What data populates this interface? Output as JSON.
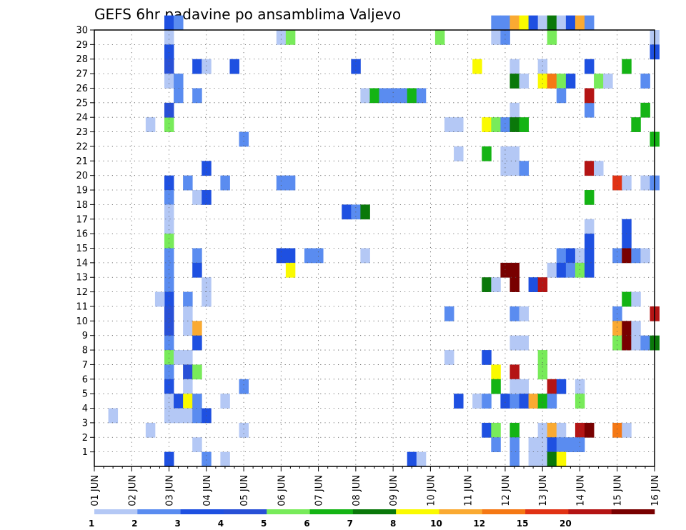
{
  "chart_data": {
    "type": "heatmap",
    "title": "GEFS 6hr padavine po ansamblima Valjevo",
    "xlabel": "",
    "ylabel": "",
    "x_ticks": [
      "01 JUN",
      "02 JUN",
      "03 JUN",
      "04 JUN",
      "05 JUN",
      "06 JUN",
      "07 JUN",
      "08 JUN",
      "09 JUN",
      "10 JUN",
      "11 JUN",
      "12 JUN",
      "13 JUN",
      "14 JUN",
      "15 JUN",
      "16 JUN"
    ],
    "y_ticks": [
      1,
      2,
      3,
      4,
      5,
      6,
      7,
      8,
      9,
      10,
      11,
      12,
      13,
      14,
      15,
      16,
      17,
      18,
      19,
      20,
      21,
      22,
      23,
      24,
      25,
      26,
      27,
      28,
      29,
      30
    ],
    "ylim": [
      0,
      30
    ],
    "time_step_hours": 6,
    "grid": "dotted",
    "legend_position": "bottom",
    "legend": {
      "labels": [
        "1",
        "2",
        "3",
        "4",
        "5",
        "6",
        "7",
        "8",
        "10",
        "12",
        "15",
        "20"
      ],
      "colors": [
        "#b4c8f5",
        "#5a8cf0",
        "#1e50e1",
        "#2850d7",
        "#78eb5a",
        "#14b414",
        "#0a780a",
        "#fafa00",
        "#faaa32",
        "#f57814",
        "#e13214",
        "#b41414",
        "#780000"
      ]
    },
    "cells": [
      {
        "t": 8,
        "m": 30,
        "c": 3
      },
      {
        "t": 9,
        "m": 30,
        "c": 2
      },
      {
        "t": 8,
        "m": 29,
        "c": 1
      },
      {
        "t": 8,
        "m": 28,
        "c": 3
      },
      {
        "t": 8,
        "m": 27,
        "c": 4
      },
      {
        "t": 8,
        "m": 26,
        "c": 1
      },
      {
        "t": 8,
        "m": 23,
        "c": 5
      },
      {
        "t": 8,
        "m": 24,
        "c": 4
      },
      {
        "t": 8,
        "m": 19,
        "c": 3
      },
      {
        "t": 8,
        "m": 18,
        "c": 2
      },
      {
        "t": 8,
        "m": 17,
        "c": 1
      },
      {
        "t": 8,
        "m": 16,
        "c": 1
      },
      {
        "t": 8,
        "m": 15,
        "c": 5
      },
      {
        "t": 8,
        "m": 14,
        "c": 2
      },
      {
        "t": 8,
        "m": 13,
        "c": 2
      },
      {
        "t": 8,
        "m": 12,
        "c": 2
      },
      {
        "t": 8,
        "m": 11,
        "c": 3
      },
      {
        "t": 8,
        "m": 10,
        "c": 4
      },
      {
        "t": 8,
        "m": 9,
        "c": 4
      },
      {
        "t": 8,
        "m": 8,
        "c": 2
      },
      {
        "t": 8,
        "m": 7,
        "c": 5
      },
      {
        "t": 8,
        "m": 6,
        "c": 2
      },
      {
        "t": 8,
        "m": 5,
        "c": 3
      },
      {
        "t": 8,
        "m": 4,
        "c": 1
      },
      {
        "t": 8,
        "m": 3,
        "c": 1
      },
      {
        "t": 8,
        "m": 0,
        "c": 3
      },
      {
        "t": 7,
        "m": 11,
        "c": 1
      },
      {
        "t": 9,
        "m": 26,
        "c": 2
      },
      {
        "t": 9,
        "m": 25,
        "c": 2
      },
      {
        "t": 9,
        "m": 7,
        "c": 1
      },
      {
        "t": 9,
        "m": 4,
        "c": 3
      },
      {
        "t": 9,
        "m": 3,
        "c": 1
      },
      {
        "t": 10,
        "m": 19,
        "c": 2
      },
      {
        "t": 10,
        "m": 11,
        "c": 2
      },
      {
        "t": 10,
        "m": 10,
        "c": 1
      },
      {
        "t": 10,
        "m": 9,
        "c": 1
      },
      {
        "t": 10,
        "m": 7,
        "c": 1
      },
      {
        "t": 10,
        "m": 6,
        "c": 4
      },
      {
        "t": 10,
        "m": 5,
        "c": 1
      },
      {
        "t": 10,
        "m": 4,
        "c": 8
      },
      {
        "t": 10,
        "m": 3,
        "c": 1
      },
      {
        "t": 11,
        "m": 27,
        "c": 3
      },
      {
        "t": 11,
        "m": 25,
        "c": 2
      },
      {
        "t": 11,
        "m": 18,
        "c": 1
      },
      {
        "t": 11,
        "m": 14,
        "c": 2
      },
      {
        "t": 11,
        "m": 13,
        "c": 3
      },
      {
        "t": 11,
        "m": 9,
        "c": 9
      },
      {
        "t": 11,
        "m": 8,
        "c": 3
      },
      {
        "t": 11,
        "m": 6,
        "c": 5
      },
      {
        "t": 11,
        "m": 4,
        "c": 2
      },
      {
        "t": 11,
        "m": 3,
        "c": 2
      },
      {
        "t": 11,
        "m": 1,
        "c": 1
      },
      {
        "t": 12,
        "m": 27,
        "c": 1
      },
      {
        "t": 12,
        "m": 20,
        "c": 3
      },
      {
        "t": 12,
        "m": 18,
        "c": 3
      },
      {
        "t": 12,
        "m": 12,
        "c": 1
      },
      {
        "t": 12,
        "m": 11,
        "c": 1
      },
      {
        "t": 12,
        "m": 3,
        "c": 3
      },
      {
        "t": 12,
        "m": 0,
        "c": 2
      },
      {
        "t": 2,
        "m": 3,
        "c": 1
      },
      {
        "t": 6,
        "m": 23,
        "c": 1
      },
      {
        "t": 6,
        "m": 2,
        "c": 1
      },
      {
        "t": 14,
        "m": 19,
        "c": 2
      },
      {
        "t": 14,
        "m": 4,
        "c": 1
      },
      {
        "t": 14,
        "m": 0,
        "c": 1
      },
      {
        "t": 15,
        "m": 27,
        "c": 3
      },
      {
        "t": 16,
        "m": 22,
        "c": 2
      },
      {
        "t": 16,
        "m": 5,
        "c": 2
      },
      {
        "t": 16,
        "m": 2,
        "c": 1
      },
      {
        "t": 20,
        "m": 29,
        "c": 1
      },
      {
        "t": 21,
        "m": 29,
        "c": 5
      },
      {
        "t": 20,
        "m": 19,
        "c": 2
      },
      {
        "t": 21,
        "m": 19,
        "c": 2
      },
      {
        "t": 20,
        "m": 14,
        "c": 3
      },
      {
        "t": 21,
        "m": 14,
        "c": 3
      },
      {
        "t": 21,
        "m": 13,
        "c": 8
      },
      {
        "t": 23,
        "m": 14,
        "c": 2
      },
      {
        "t": 24,
        "m": 14,
        "c": 2
      },
      {
        "t": 27,
        "m": 17,
        "c": 3
      },
      {
        "t": 28,
        "m": 17,
        "c": 2
      },
      {
        "t": 29,
        "m": 17,
        "c": 7
      },
      {
        "t": 29,
        "m": 14,
        "c": 1
      },
      {
        "t": 28,
        "m": 27,
        "c": 3
      },
      {
        "t": 29,
        "m": 25,
        "c": 1
      },
      {
        "t": 30,
        "m": 25,
        "c": 6
      },
      {
        "t": 31,
        "m": 25,
        "c": 2
      },
      {
        "t": 32,
        "m": 25,
        "c": 2
      },
      {
        "t": 33,
        "m": 25,
        "c": 2
      },
      {
        "t": 34,
        "m": 25,
        "c": 6
      },
      {
        "t": 35,
        "m": 25,
        "c": 2
      },
      {
        "t": 34,
        "m": 0,
        "c": 3
      },
      {
        "t": 35,
        "m": 0,
        "c": 1
      },
      {
        "t": 37,
        "m": 29,
        "c": 5
      },
      {
        "t": 38,
        "m": 23,
        "c": 1
      },
      {
        "t": 39,
        "m": 23,
        "c": 1
      },
      {
        "t": 38,
        "m": 10,
        "c": 2
      },
      {
        "t": 38,
        "m": 7,
        "c": 1
      },
      {
        "t": 39,
        "m": 4,
        "c": 3
      },
      {
        "t": 39,
        "m": 21,
        "c": 1
      },
      {
        "t": 41,
        "m": 27,
        "c": 8
      },
      {
        "t": 41,
        "m": 4,
        "c": 1
      },
      {
        "t": 42,
        "m": 23,
        "c": 8
      },
      {
        "t": 42,
        "m": 21,
        "c": 6
      },
      {
        "t": 42,
        "m": 12,
        "c": 7
      },
      {
        "t": 42,
        "m": 2,
        "c": 3
      },
      {
        "t": 42,
        "m": 4,
        "c": 2
      },
      {
        "t": 42,
        "m": 7,
        "c": 3
      },
      {
        "t": 43,
        "m": 30,
        "c": 2
      },
      {
        "t": 44,
        "m": 30,
        "c": 2
      },
      {
        "t": 43,
        "m": 29,
        "c": 1
      },
      {
        "t": 44,
        "m": 29,
        "c": 2
      },
      {
        "t": 43,
        "m": 23,
        "c": 5
      },
      {
        "t": 43,
        "m": 12,
        "c": 1
      },
      {
        "t": 43,
        "m": 6,
        "c": 8
      },
      {
        "t": 43,
        "m": 5,
        "c": 6
      },
      {
        "t": 43,
        "m": 2,
        "c": 5
      },
      {
        "t": 43,
        "m": 1,
        "c": 2
      },
      {
        "t": 44,
        "m": 13,
        "c": 13
      },
      {
        "t": 45,
        "m": 13,
        "c": 13
      },
      {
        "t": 44,
        "m": 23,
        "c": 2
      },
      {
        "t": 44,
        "m": 4,
        "c": 3
      },
      {
        "t": 44,
        "m": 20,
        "c": 1
      },
      {
        "t": 45,
        "m": 21,
        "c": 1
      },
      {
        "t": 45,
        "m": 20,
        "c": 1
      },
      {
        "t": 44,
        "m": 21,
        "c": 1
      },
      {
        "t": 45,
        "m": 30,
        "c": 9
      },
      {
        "t": 45,
        "m": 27,
        "c": 1
      },
      {
        "t": 45,
        "m": 26,
        "c": 7
      },
      {
        "t": 45,
        "m": 24,
        "c": 1
      },
      {
        "t": 45,
        "m": 23,
        "c": 7
      },
      {
        "t": 45,
        "m": 12,
        "c": 13
      },
      {
        "t": 45,
        "m": 10,
        "c": 2
      },
      {
        "t": 45,
        "m": 8,
        "c": 1
      },
      {
        "t": 45,
        "m": 6,
        "c": 12
      },
      {
        "t": 45,
        "m": 4,
        "c": 2
      },
      {
        "t": 45,
        "m": 5,
        "c": 1
      },
      {
        "t": 45,
        "m": 2,
        "c": 6
      },
      {
        "t": 45,
        "m": 1,
        "c": 2
      },
      {
        "t": 45,
        "m": 0,
        "c": 2
      },
      {
        "t": 46,
        "m": 30,
        "c": 8
      },
      {
        "t": 46,
        "m": 26,
        "c": 1
      },
      {
        "t": 46,
        "m": 23,
        "c": 6
      },
      {
        "t": 46,
        "m": 20,
        "c": 2
      },
      {
        "t": 46,
        "m": 10,
        "c": 1
      },
      {
        "t": 46,
        "m": 8,
        "c": 1
      },
      {
        "t": 46,
        "m": 5,
        "c": 1
      },
      {
        "t": 46,
        "m": 4,
        "c": 3
      },
      {
        "t": 47,
        "m": 30,
        "c": 3
      },
      {
        "t": 47,
        "m": 12,
        "c": 3
      },
      {
        "t": 47,
        "m": 4,
        "c": 9
      },
      {
        "t": 47,
        "m": 1,
        "c": 1
      },
      {
        "t": 47,
        "m": 0,
        "c": 1
      },
      {
        "t": 48,
        "m": 30,
        "c": 1
      },
      {
        "t": 48,
        "m": 27,
        "c": 1
      },
      {
        "t": 48,
        "m": 26,
        "c": 8
      },
      {
        "t": 48,
        "m": 12,
        "c": 12
      },
      {
        "t": 48,
        "m": 4,
        "c": 6
      },
      {
        "t": 48,
        "m": 7,
        "c": 5
      },
      {
        "t": 48,
        "m": 6,
        "c": 5
      },
      {
        "t": 48,
        "m": 2,
        "c": 1
      },
      {
        "t": 48,
        "m": 1,
        "c": 1
      },
      {
        "t": 48,
        "m": 0,
        "c": 1
      },
      {
        "t": 49,
        "m": 30,
        "c": 7
      },
      {
        "t": 49,
        "m": 29,
        "c": 5
      },
      {
        "t": 49,
        "m": 26,
        "c": 10
      },
      {
        "t": 49,
        "m": 13,
        "c": 1
      },
      {
        "t": 49,
        "m": 5,
        "c": 12
      },
      {
        "t": 49,
        "m": 4,
        "c": 2
      },
      {
        "t": 49,
        "m": 2,
        "c": 9
      },
      {
        "t": 49,
        "m": 1,
        "c": 3
      },
      {
        "t": 49,
        "m": 0,
        "c": 7
      },
      {
        "t": 50,
        "m": 30,
        "c": 1
      },
      {
        "t": 50,
        "m": 26,
        "c": 5
      },
      {
        "t": 50,
        "m": 25,
        "c": 2
      },
      {
        "t": 50,
        "m": 14,
        "c": 2
      },
      {
        "t": 50,
        "m": 13,
        "c": 3
      },
      {
        "t": 50,
        "m": 5,
        "c": 3
      },
      {
        "t": 50,
        "m": 2,
        "c": 1
      },
      {
        "t": 50,
        "m": 1,
        "c": 2
      },
      {
        "t": 50,
        "m": 0,
        "c": 8
      },
      {
        "t": 51,
        "m": 30,
        "c": 3
      },
      {
        "t": 51,
        "m": 26,
        "c": 3
      },
      {
        "t": 51,
        "m": 14,
        "c": 3
      },
      {
        "t": 51,
        "m": 13,
        "c": 2
      },
      {
        "t": 51,
        "m": 1,
        "c": 2
      },
      {
        "t": 52,
        "m": 30,
        "c": 9
      },
      {
        "t": 52,
        "m": 14,
        "c": 1
      },
      {
        "t": 52,
        "m": 13,
        "c": 5
      },
      {
        "t": 52,
        "m": 5,
        "c": 1
      },
      {
        "t": 52,
        "m": 4,
        "c": 5
      },
      {
        "t": 52,
        "m": 2,
        "c": 12
      },
      {
        "t": 52,
        "m": 1,
        "c": 2
      },
      {
        "t": 53,
        "m": 30,
        "c": 2
      },
      {
        "t": 53,
        "m": 27,
        "c": 3
      },
      {
        "t": 53,
        "m": 24,
        "c": 2
      },
      {
        "t": 53,
        "m": 25,
        "c": 12
      },
      {
        "t": 53,
        "m": 20,
        "c": 12
      },
      {
        "t": 53,
        "m": 18,
        "c": 6
      },
      {
        "t": 53,
        "m": 16,
        "c": 1
      },
      {
        "t": 53,
        "m": 15,
        "c": 3
      },
      {
        "t": 53,
        "m": 14,
        "c": 3
      },
      {
        "t": 53,
        "m": 13,
        "c": 3
      },
      {
        "t": 53,
        "m": 2,
        "c": 13
      },
      {
        "t": 54,
        "m": 26,
        "c": 5
      },
      {
        "t": 54,
        "m": 20,
        "c": 1
      },
      {
        "t": 55,
        "m": 26,
        "c": 1
      },
      {
        "t": 56,
        "m": 19,
        "c": 11
      },
      {
        "t": 56,
        "m": 10,
        "c": 2
      },
      {
        "t": 56,
        "m": 9,
        "c": 9
      },
      {
        "t": 56,
        "m": 8,
        "c": 5
      },
      {
        "t": 56,
        "m": 2,
        "c": 10
      },
      {
        "t": 56,
        "m": 14,
        "c": 2
      },
      {
        "t": 57,
        "m": 27,
        "c": 6
      },
      {
        "t": 57,
        "m": 19,
        "c": 1
      },
      {
        "t": 57,
        "m": 16,
        "c": 3
      },
      {
        "t": 57,
        "m": 15,
        "c": 3
      },
      {
        "t": 57,
        "m": 14,
        "c": 13
      },
      {
        "t": 57,
        "m": 11,
        "c": 6
      },
      {
        "t": 57,
        "m": 9,
        "c": 13
      },
      {
        "t": 57,
        "m": 8,
        "c": 13
      },
      {
        "t": 57,
        "m": 2,
        "c": 1
      },
      {
        "t": 58,
        "m": 23,
        "c": 6
      },
      {
        "t": 58,
        "m": 14,
        "c": 2
      },
      {
        "t": 58,
        "m": 11,
        "c": 1
      },
      {
        "t": 58,
        "m": 9,
        "c": 1
      },
      {
        "t": 58,
        "m": 8,
        "c": 1
      },
      {
        "t": 59,
        "m": 24,
        "c": 6
      },
      {
        "t": 59,
        "m": 8,
        "c": 2
      },
      {
        "t": 59,
        "m": 14,
        "c": 1
      },
      {
        "t": 59,
        "m": 19,
        "c": 1
      },
      {
        "t": 59,
        "m": 26,
        "c": 2
      },
      {
        "t": 60,
        "m": 29,
        "c": 1
      },
      {
        "t": 60,
        "m": 28,
        "c": 3
      },
      {
        "t": 60,
        "m": 22,
        "c": 6
      },
      {
        "t": 60,
        "m": 19,
        "c": 2
      },
      {
        "t": 60,
        "m": 10,
        "c": 12
      },
      {
        "t": 60,
        "m": 8,
        "c": 7
      }
    ]
  }
}
